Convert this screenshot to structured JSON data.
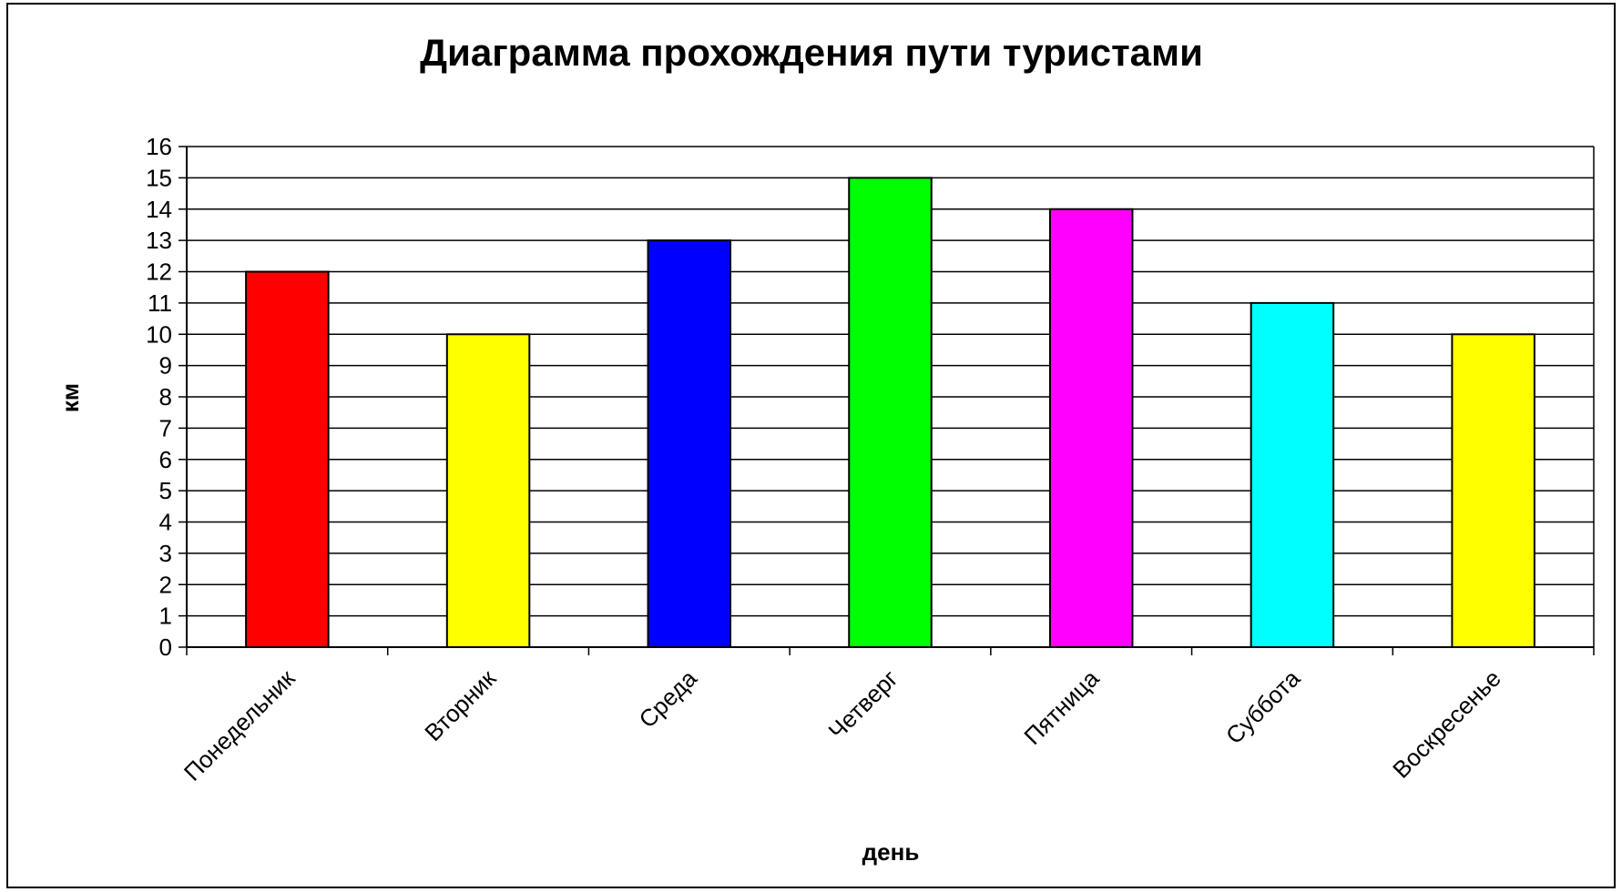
{
  "chart_data": {
    "type": "bar",
    "title": "Диаграмма прохождения пути туристами",
    "xlabel": "день",
    "ylabel": "км",
    "categories": [
      "Понедельник",
      "Вторник",
      "Среда",
      "Четверг",
      "Пятница",
      "Суббота",
      "Воскресенье"
    ],
    "values": [
      12,
      10,
      13,
      15,
      14,
      11,
      10
    ],
    "bar_colors": [
      "#ff0000",
      "#ffff00",
      "#0000ff",
      "#00ff00",
      "#ff00ff",
      "#00ffff",
      "#ffff00"
    ],
    "ylim": [
      0,
      16
    ],
    "yticks": [
      0,
      1,
      2,
      3,
      4,
      5,
      6,
      7,
      8,
      9,
      10,
      11,
      12,
      13,
      14,
      15,
      16
    ],
    "grid": true,
    "legend": "none"
  }
}
